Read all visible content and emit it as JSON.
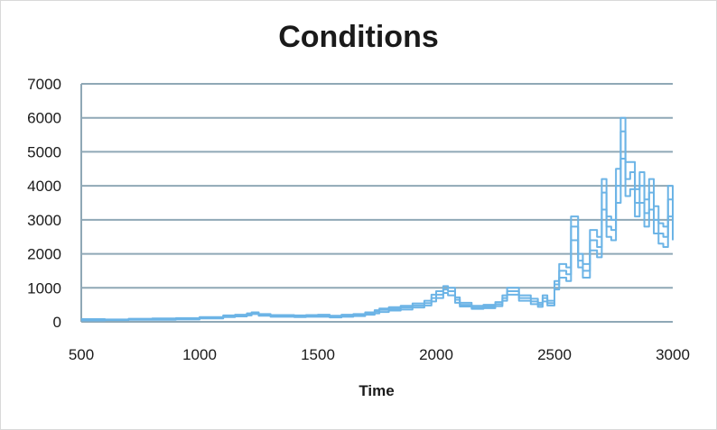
{
  "chart_data": {
    "type": "line",
    "title": "Conditions",
    "xlabel": "Time",
    "ylabel": "",
    "xlim": [
      500,
      3000
    ],
    "ylim": [
      0,
      7000
    ],
    "x_ticks": [
      "500",
      "1000",
      "1500",
      "2000",
      "2500",
      "3000"
    ],
    "y_ticks": [
      "0",
      "1000",
      "2000",
      "3000",
      "4000",
      "5000",
      "6000",
      "7000"
    ],
    "grid": true,
    "legend": "none",
    "series_color": "#6cb4e6",
    "series": [
      {
        "x": [
          500,
          600,
          700,
          800,
          900,
          1000,
          1100,
          1150,
          1200,
          1220,
          1250,
          1300,
          1350,
          1400,
          1450,
          1500,
          1550,
          1600,
          1650,
          1700,
          1740,
          1760,
          1800,
          1850,
          1900,
          1950,
          1980,
          2000,
          2030,
          2050,
          2080,
          2100,
          2150,
          2200,
          2250,
          2280,
          2300,
          2350,
          2400,
          2430,
          2450,
          2470,
          2500,
          2520,
          2550,
          2570,
          2600,
          2620,
          2650,
          2680,
          2700,
          2720,
          2740,
          2760,
          2780,
          2800,
          2820,
          2840,
          2860,
          2880,
          2900,
          2920,
          2940,
          2960,
          2980,
          3000
        ],
        "values": [
          60,
          60,
          70,
          80,
          90,
          120,
          160,
          180,
          220,
          260,
          200,
          170,
          180,
          160,
          170,
          180,
          150,
          180,
          200,
          250,
          300,
          350,
          380,
          420,
          480,
          550,
          700,
          800,
          950,
          900,
          650,
          500,
          420,
          450,
          520,
          700,
          900,
          700,
          600,
          500,
          700,
          550,
          1100,
          1500,
          1400,
          2800,
          1800,
          1500,
          2400,
          2200,
          3800,
          2800,
          2700,
          4000,
          5600,
          4200,
          4400,
          3500,
          4000,
          3200,
          3800,
          3000,
          2600,
          2500,
          3600,
          2800
        ]
      },
      {
        "x": [
          500,
          600,
          700,
          800,
          900,
          1000,
          1100,
          1150,
          1200,
          1220,
          1250,
          1300,
          1350,
          1400,
          1450,
          1500,
          1550,
          1600,
          1650,
          1700,
          1740,
          1760,
          1800,
          1850,
          1900,
          1950,
          1980,
          2000,
          2030,
          2050,
          2080,
          2100,
          2150,
          2200,
          2250,
          2280,
          2300,
          2350,
          2400,
          2430,
          2450,
          2470,
          2500,
          2520,
          2550,
          2570,
          2600,
          2620,
          2650,
          2680,
          2700,
          2720,
          2740,
          2760,
          2780,
          2800,
          2820,
          2840,
          2860,
          2880,
          2900,
          2920,
          2940,
          2960,
          2980,
          3000
        ],
        "values": [
          40,
          50,
          60,
          60,
          70,
          100,
          140,
          160,
          190,
          230,
          180,
          150,
          150,
          140,
          150,
          150,
          130,
          150,
          170,
          210,
          250,
          290,
          330,
          360,
          420,
          480,
          600,
          700,
          850,
          780,
          560,
          450,
          380,
          400,
          460,
          620,
          800,
          620,
          520,
          440,
          600,
          480,
          950,
          1300,
          1200,
          2400,
          1600,
          1300,
          2100,
          1900,
          3300,
          2500,
          2400,
          3500,
          4800,
          3700,
          3900,
          3100,
          3500,
          2800,
          3300,
          2600,
          2300,
          2200,
          3100,
          2400
        ]
      },
      {
        "x": [
          500,
          600,
          700,
          800,
          900,
          1000,
          1100,
          1150,
          1200,
          1220,
          1250,
          1300,
          1350,
          1400,
          1450,
          1500,
          1550,
          1600,
          1650,
          1700,
          1740,
          1760,
          1800,
          1850,
          1900,
          1950,
          1980,
          2000,
          2030,
          2050,
          2080,
          2100,
          2150,
          2200,
          2250,
          2280,
          2300,
          2350,
          2400,
          2430,
          2450,
          2470,
          2500,
          2520,
          2550,
          2570,
          2600,
          2620,
          2650,
          2680,
          2700,
          2720,
          2740,
          2760,
          2780,
          2800,
          2820,
          2840,
          2860,
          2880,
          2900,
          2920,
          2940,
          2960,
          2980,
          3000
        ],
        "values": [
          80,
          70,
          90,
          100,
          110,
          140,
          190,
          210,
          250,
          280,
          230,
          200,
          200,
          190,
          200,
          210,
          180,
          210,
          230,
          280,
          340,
          390,
          430,
          470,
          540,
          620,
          800,
          900,
          1050,
          1000,
          720,
          560,
          470,
          500,
          580,
          780,
          1000,
          780,
          680,
          560,
          780,
          620,
          1200,
          1700,
          1600,
          3100,
          2000,
          1700,
          2700,
          2500,
          4200,
          3100,
          3000,
          4500,
          6000,
          4700,
          4700,
          3900,
          4400,
          3600,
          4200,
          3400,
          2900,
          2800,
          4000,
          3100
        ]
      }
    ]
  }
}
